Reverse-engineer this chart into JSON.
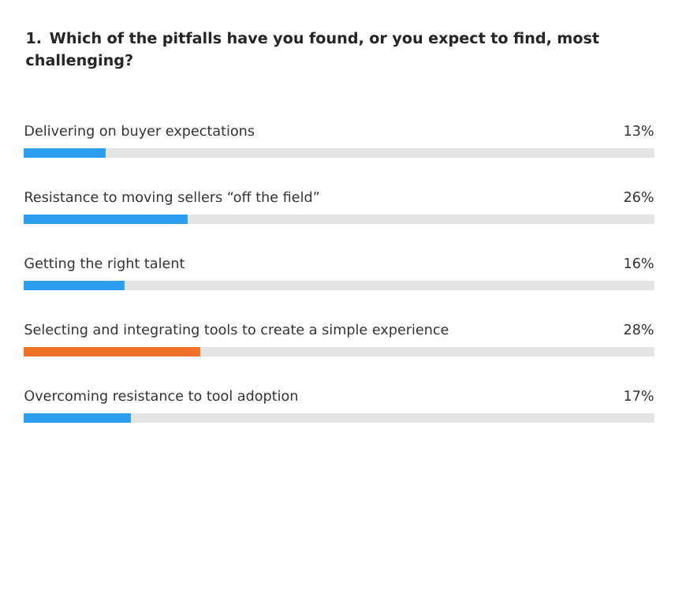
{
  "chart_data": {
    "type": "bar",
    "orientation": "horizontal",
    "title": "1. Which of the pitfalls have you found, or you expect to find, most challenging?",
    "categories": [
      "Delivering on buyer expectations",
      "Resistance to moving sellers “off the field”",
      "Getting the right talent",
      "Selecting and integrating tools to create a simple experience",
      "Overcoming resistance to tool adoption"
    ],
    "values": [
      13,
      26,
      16,
      28,
      17
    ],
    "value_labels": [
      "13%",
      "26%",
      "16%",
      "28%",
      "17%"
    ],
    "colors": [
      "#2e9ff0",
      "#2e9ff0",
      "#2e9ff0",
      "#f07226",
      "#2e9ff0"
    ],
    "xlim": [
      0,
      100
    ]
  }
}
